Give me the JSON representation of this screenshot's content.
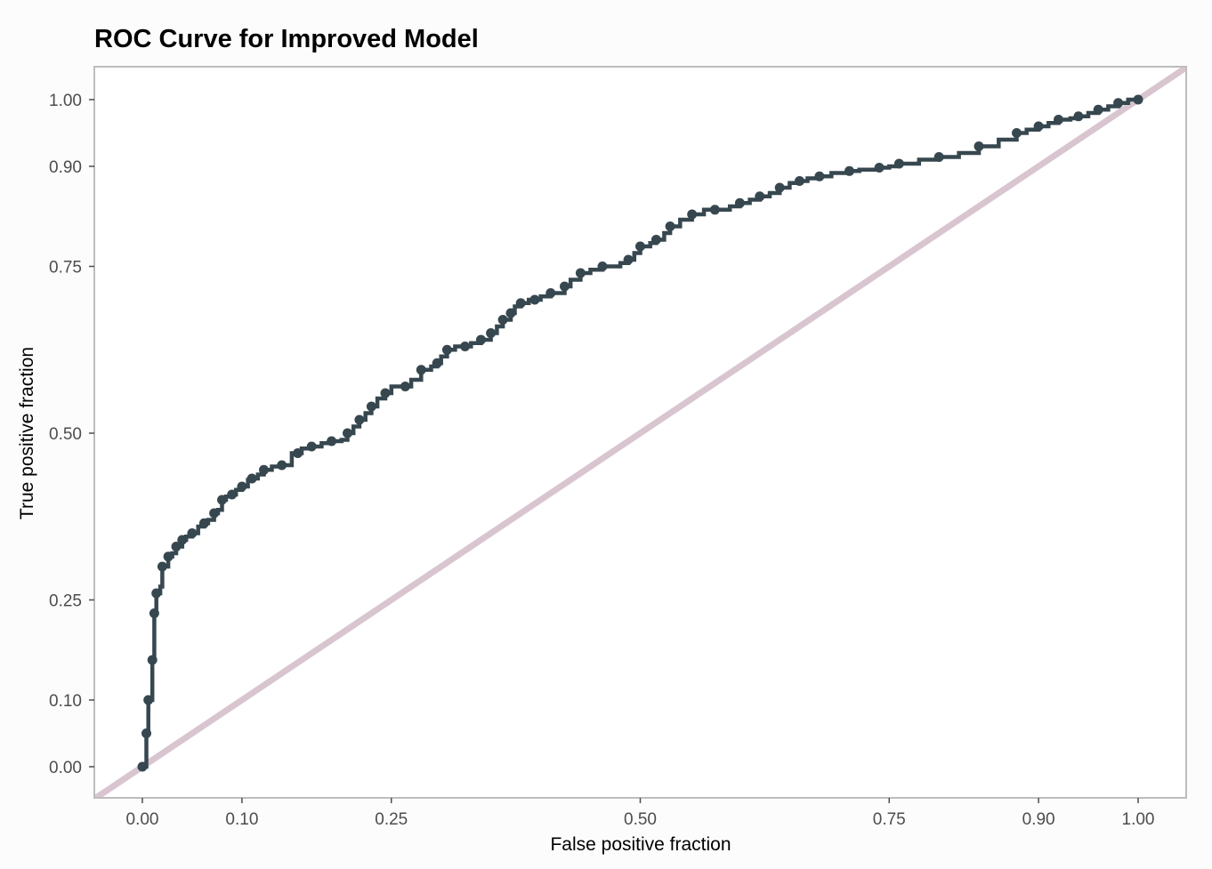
{
  "chart_data": {
    "type": "line",
    "title": "ROC Curve for Improved Model",
    "xlabel": "False positive fraction",
    "ylabel": "True positive fraction",
    "x_ticks": [
      "0.00",
      "0.10",
      "0.25",
      "0.50",
      "0.75",
      "0.90",
      "1.00"
    ],
    "y_ticks": [
      "0.00",
      "0.10",
      "0.25",
      "0.50",
      "0.75",
      "0.90",
      "1.00"
    ],
    "grid": false,
    "legend": "none",
    "series": [
      {
        "color": "#37474f",
        "points": [
          [
            0.0,
            0.0
          ],
          [
            0.004,
            0.005
          ],
          [
            0.004,
            0.05
          ],
          [
            0.006,
            0.06
          ],
          [
            0.006,
            0.1
          ],
          [
            0.01,
            0.1
          ],
          [
            0.01,
            0.16
          ],
          [
            0.012,
            0.16
          ],
          [
            0.012,
            0.23
          ],
          [
            0.014,
            0.23
          ],
          [
            0.014,
            0.26
          ],
          [
            0.018,
            0.27
          ],
          [
            0.02,
            0.3
          ],
          [
            0.026,
            0.31
          ],
          [
            0.026,
            0.315
          ],
          [
            0.03,
            0.32
          ],
          [
            0.034,
            0.33
          ],
          [
            0.036,
            0.33
          ],
          [
            0.04,
            0.34
          ],
          [
            0.044,
            0.345
          ],
          [
            0.05,
            0.35
          ],
          [
            0.056,
            0.36
          ],
          [
            0.062,
            0.365
          ],
          [
            0.066,
            0.37
          ],
          [
            0.072,
            0.38
          ],
          [
            0.076,
            0.385
          ],
          [
            0.08,
            0.4
          ],
          [
            0.084,
            0.405
          ],
          [
            0.09,
            0.408
          ],
          [
            0.094,
            0.415
          ],
          [
            0.1,
            0.42
          ],
          [
            0.106,
            0.43
          ],
          [
            0.11,
            0.432
          ],
          [
            0.116,
            0.438
          ],
          [
            0.122,
            0.445
          ],
          [
            0.13,
            0.45
          ],
          [
            0.14,
            0.452
          ],
          [
            0.15,
            0.47
          ],
          [
            0.156,
            0.47
          ],
          [
            0.16,
            0.477
          ],
          [
            0.17,
            0.48
          ],
          [
            0.18,
            0.485
          ],
          [
            0.19,
            0.488
          ],
          [
            0.2,
            0.49
          ],
          [
            0.206,
            0.5
          ],
          [
            0.212,
            0.51
          ],
          [
            0.218,
            0.52
          ],
          [
            0.224,
            0.53
          ],
          [
            0.23,
            0.54
          ],
          [
            0.236,
            0.552
          ],
          [
            0.244,
            0.56
          ],
          [
            0.25,
            0.57
          ],
          [
            0.264,
            0.57
          ],
          [
            0.27,
            0.58
          ],
          [
            0.28,
            0.595
          ],
          [
            0.29,
            0.6
          ],
          [
            0.296,
            0.605
          ],
          [
            0.3,
            0.615
          ],
          [
            0.306,
            0.625
          ],
          [
            0.314,
            0.63
          ],
          [
            0.324,
            0.63
          ],
          [
            0.33,
            0.635
          ],
          [
            0.34,
            0.64
          ],
          [
            0.344,
            0.64
          ],
          [
            0.35,
            0.65
          ],
          [
            0.356,
            0.66
          ],
          [
            0.362,
            0.67
          ],
          [
            0.366,
            0.67
          ],
          [
            0.37,
            0.68
          ],
          [
            0.374,
            0.69
          ],
          [
            0.38,
            0.695
          ],
          [
            0.388,
            0.7
          ],
          [
            0.394,
            0.7
          ],
          [
            0.4,
            0.705
          ],
          [
            0.41,
            0.71
          ],
          [
            0.418,
            0.71
          ],
          [
            0.424,
            0.72
          ],
          [
            0.43,
            0.73
          ],
          [
            0.44,
            0.74
          ],
          [
            0.45,
            0.745
          ],
          [
            0.462,
            0.75
          ],
          [
            0.48,
            0.755
          ],
          [
            0.488,
            0.76
          ],
          [
            0.494,
            0.77
          ],
          [
            0.5,
            0.78
          ],
          [
            0.51,
            0.785
          ],
          [
            0.516,
            0.79
          ],
          [
            0.524,
            0.8
          ],
          [
            0.53,
            0.81
          ],
          [
            0.54,
            0.82
          ],
          [
            0.552,
            0.828
          ],
          [
            0.564,
            0.835
          ],
          [
            0.575,
            0.835
          ],
          [
            0.59,
            0.84
          ],
          [
            0.6,
            0.845
          ],
          [
            0.61,
            0.85
          ],
          [
            0.62,
            0.855
          ],
          [
            0.63,
            0.86
          ],
          [
            0.64,
            0.868
          ],
          [
            0.65,
            0.875
          ],
          [
            0.66,
            0.878
          ],
          [
            0.668,
            0.882
          ],
          [
            0.68,
            0.885
          ],
          [
            0.692,
            0.89
          ],
          [
            0.71,
            0.893
          ],
          [
            0.72,
            0.895
          ],
          [
            0.74,
            0.898
          ],
          [
            0.75,
            0.9
          ],
          [
            0.76,
            0.904
          ],
          [
            0.78,
            0.91
          ],
          [
            0.8,
            0.914
          ],
          [
            0.82,
            0.92
          ],
          [
            0.84,
            0.93
          ],
          [
            0.86,
            0.94
          ],
          [
            0.878,
            0.95
          ],
          [
            0.888,
            0.955
          ],
          [
            0.9,
            0.96
          ],
          [
            0.91,
            0.965
          ],
          [
            0.92,
            0.97
          ],
          [
            0.932,
            0.972
          ],
          [
            0.94,
            0.975
          ],
          [
            0.95,
            0.98
          ],
          [
            0.96,
            0.985
          ],
          [
            0.97,
            0.99
          ],
          [
            0.98,
            0.995
          ],
          [
            0.99,
            1.0
          ],
          [
            1.0,
            1.0
          ]
        ]
      }
    ],
    "reference_line": {
      "color": "#d8c5d0",
      "from": [
        0,
        0
      ],
      "to": [
        1,
        1
      ]
    }
  }
}
